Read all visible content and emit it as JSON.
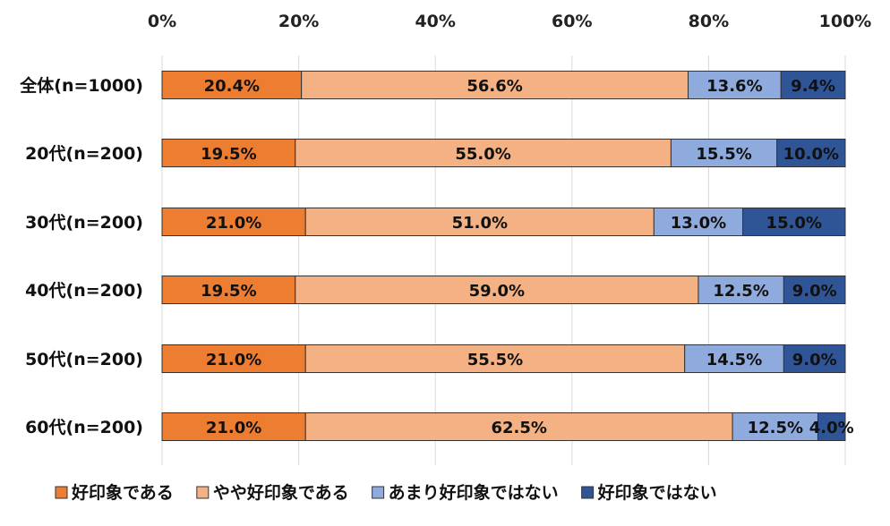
{
  "chart_data": {
    "type": "bar",
    "orientation": "horizontal",
    "stacked": true,
    "xlim": [
      0,
      100
    ],
    "x_ticks": [
      "0%",
      "20%",
      "40%",
      "60%",
      "80%",
      "100%"
    ],
    "categories": [
      "全体(n=1000)",
      "20代(n=200)",
      "30代(n=200)",
      "40代(n=200)",
      "50代(n=200)",
      "60代(n=200)"
    ],
    "series": [
      {
        "name": "好印象である",
        "color": "#ed7d31",
        "values": [
          20.4,
          19.5,
          21.0,
          19.5,
          21.0,
          21.0
        ],
        "labels": [
          "20.4%",
          "19.5%",
          "21.0%",
          "19.5%",
          "21.0%",
          "21.0%"
        ]
      },
      {
        "name": "やや好印象である",
        "color": "#f4b183",
        "values": [
          56.6,
          55.0,
          51.0,
          59.0,
          55.5,
          62.5
        ],
        "labels": [
          "56.6%",
          "55.0%",
          "51.0%",
          "59.0%",
          "55.5%",
          "62.5%"
        ]
      },
      {
        "name": "あまり好印象ではない",
        "color": "#8faadc",
        "values": [
          13.6,
          15.5,
          13.0,
          12.5,
          14.5,
          12.5
        ],
        "labels": [
          "13.6%",
          "15.5%",
          "13.0%",
          "12.5%",
          "14.5%",
          "12.5%"
        ]
      },
      {
        "name": "好印象ではない",
        "color": "#2f5597",
        "values": [
          9.4,
          10.0,
          15.0,
          9.0,
          9.0,
          4.0
        ],
        "labels": [
          "9.4%",
          "10.0%",
          "15.0%",
          "9.0%",
          "9.0%",
          "4.0%"
        ]
      }
    ],
    "grid": true,
    "legend_position": "bottom"
  }
}
